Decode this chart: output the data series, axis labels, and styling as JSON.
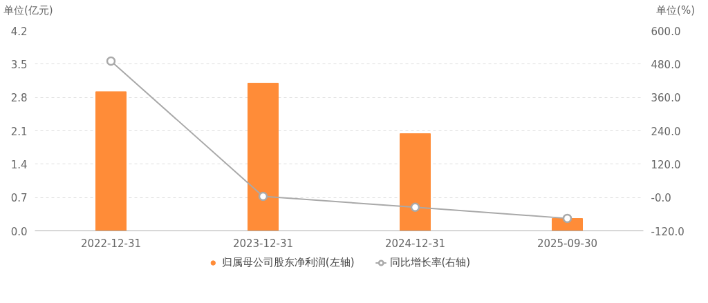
{
  "chart_data": {
    "type": "bar",
    "ylabel": "单位(亿元)",
    "y2label": "单位(%)",
    "categories": [
      "2022-12-31",
      "2023-12-31",
      "2024-12-31",
      "2025-09-30"
    ],
    "series": [
      {
        "name": "归属母公司股东净利润(左轴)",
        "color": "#ff8c38",
        "values": [
          2.92,
          3.1,
          2.04,
          0.26
        ]
      },
      {
        "name": "同比增长率(右轴)",
        "type": "line",
        "axis": "y2",
        "color": "#a9a9a9",
        "marker": "circle",
        "values": [
          491,
          4,
          -35,
          -75
        ]
      }
    ],
    "ylim": [
      0,
      4.2
    ],
    "yticks": [
      {
        "value": 0,
        "label": "0.0"
      },
      0.7,
      1.4,
      2.1,
      2.8,
      3.5,
      4.2
    ],
    "y2lim": [
      -120,
      600
    ],
    "y2ticks": [
      {
        "value": -120,
        "label": "-120.0"
      },
      {
        "value": 0,
        "label": "-0.0"
      },
      {
        "value": 120,
        "label": "120.0"
      },
      {
        "value": 240,
        "label": "240.0"
      },
      {
        "value": 360,
        "label": "360.0"
      },
      {
        "value": 480,
        "label": "480.0"
      },
      {
        "value": 600,
        "label": "600.0"
      }
    ],
    "grid": "y",
    "legend": "bottom"
  }
}
